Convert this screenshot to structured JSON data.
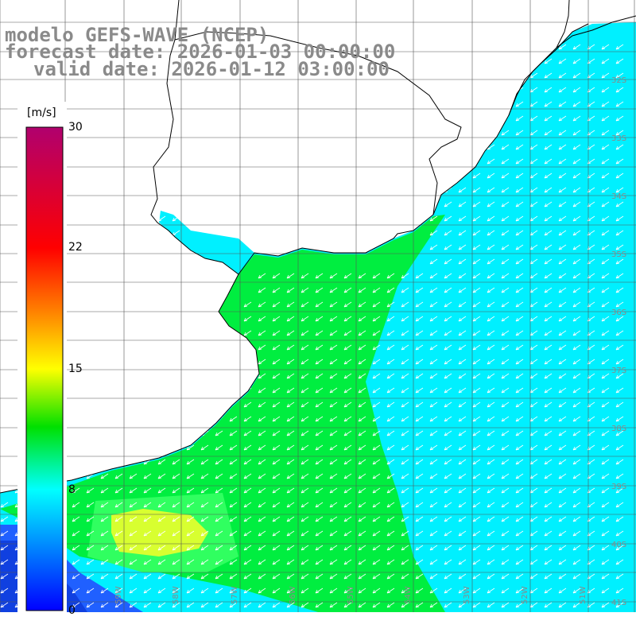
{
  "title": {
    "line1": "modelo GEFS-WAVE (NCEP)",
    "line2": "forecast date: 2026-01-03 00:00:00",
    "line3": "valid date: 2026-01-12 03:00:00"
  },
  "colorbar": {
    "unit": "[m/s]",
    "ticks": [
      "30",
      "22",
      "15",
      "8",
      "0"
    ],
    "colors": [
      "#b0006e",
      "#ff0000",
      "#ff8000",
      "#ffff00",
      "#00e000",
      "#00ffff",
      "#0000ff"
    ]
  },
  "grid": {
    "lat_labels": [
      "32S",
      "33S",
      "34S",
      "35S",
      "36S",
      "37S",
      "38S",
      "39S",
      "40S",
      "41S"
    ],
    "lon_labels": [
      "59W",
      "58W",
      "57W",
      "56W",
      "55W",
      "54W",
      "53W",
      "52W",
      "51W"
    ]
  },
  "colors": {
    "land": "#ffffff",
    "coast": "#000000",
    "grid_line": "#555555",
    "cyan": "#00f0ff",
    "green": "#00ee40",
    "light_green": "#30ff60",
    "yellow": "#d8ff30",
    "blue": "#2060ff",
    "arrow": "#ffffff"
  }
}
